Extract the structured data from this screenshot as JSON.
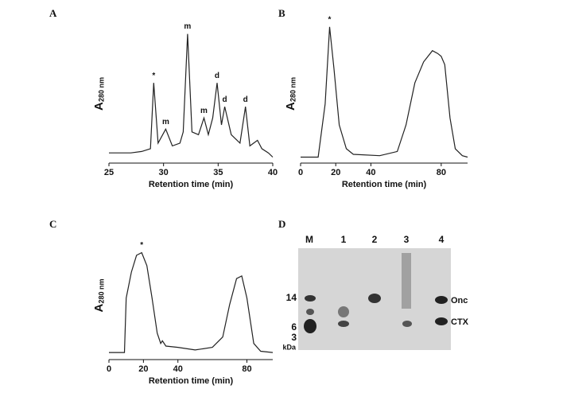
{
  "chart_data": [
    {
      "type": "line",
      "panel": "A",
      "xlabel": "Retention time (min)",
      "ylabel": {
        "main": "A",
        "sub": "280 nm"
      },
      "xlim": [
        25,
        40
      ],
      "xticks": [
        25,
        30,
        35,
        40
      ],
      "ylim": [
        0,
        100
      ],
      "color": "#222222",
      "x": [
        25,
        26,
        27,
        28,
        28.8,
        29.1,
        29.5,
        30.2,
        30.8,
        31.5,
        31.8,
        32.2,
        32.6,
        33.2,
        33.7,
        34.1,
        34.5,
        34.9,
        35.3,
        35.6,
        36.2,
        37,
        37.5,
        37.9,
        38.6,
        39,
        39.6,
        40
      ],
      "values": [
        5,
        5,
        5,
        6,
        8,
        55,
        12,
        22,
        10,
        12,
        20,
        90,
        20,
        18,
        30,
        18,
        30,
        55,
        25,
        38,
        18,
        12,
        38,
        10,
        14,
        8,
        5,
        2
      ],
      "annotations": [
        {
          "text": "*",
          "x": 29.1,
          "y": 55
        },
        {
          "text": "m",
          "x": 30.2,
          "y": 22
        },
        {
          "text": "m",
          "x": 32.2,
          "y": 90
        },
        {
          "text": "m",
          "x": 33.7,
          "y": 30
        },
        {
          "text": "d",
          "x": 34.9,
          "y": 55
        },
        {
          "text": "d",
          "x": 35.6,
          "y": 38
        },
        {
          "text": "d",
          "x": 37.5,
          "y": 38
        }
      ]
    },
    {
      "type": "line",
      "panel": "B",
      "xlabel": "Retention time (min)",
      "ylabel": {
        "main": "A",
        "sub": "280 nm"
      },
      "xlim": [
        0,
        95
      ],
      "xticks": [
        0,
        20,
        40,
        80
      ],
      "ylim": [
        0,
        100
      ],
      "color": "#222222",
      "x": [
        0,
        10,
        14,
        16.5,
        19,
        22,
        26,
        30,
        45,
        55,
        60,
        65,
        70,
        75,
        78,
        80,
        82,
        85,
        88,
        92,
        95
      ],
      "values": [
        2,
        2,
        40,
        95,
        65,
        25,
        8,
        4,
        3,
        6,
        25,
        55,
        70,
        78,
        76,
        74,
        68,
        30,
        8,
        3,
        2
      ],
      "annotations": [
        {
          "text": "*",
          "x": 16.5,
          "y": 95
        }
      ]
    },
    {
      "type": "line",
      "panel": "C",
      "xlabel": "Retention time (min)",
      "ylabel": {
        "main": "A",
        "sub": "280 nm"
      },
      "xlim": [
        0,
        95
      ],
      "xticks": [
        0,
        20,
        40,
        80
      ],
      "ylim": [
        0,
        100
      ],
      "color": "#222222",
      "x": [
        0,
        8,
        9,
        10,
        13,
        16,
        19,
        22,
        25,
        28,
        30,
        31,
        33,
        40,
        50,
        60,
        66,
        70,
        74,
        77,
        80,
        84,
        88,
        95
      ],
      "values": [
        3,
        3,
        3,
        45,
        65,
        78,
        80,
        70,
        45,
        18,
        10,
        12,
        8,
        7,
        5,
        7,
        15,
        40,
        60,
        62,
        45,
        10,
        4,
        3
      ],
      "annotations": [
        {
          "text": "*",
          "x": 19,
          "y": 80
        }
      ]
    }
  ],
  "gel": {
    "panel": "D",
    "lanes": [
      "M",
      "1",
      "2",
      "3",
      "4"
    ],
    "markers": [
      "14",
      "6",
      "3"
    ],
    "unit": "kDa",
    "bands": [
      "Onc",
      "CTX"
    ]
  }
}
